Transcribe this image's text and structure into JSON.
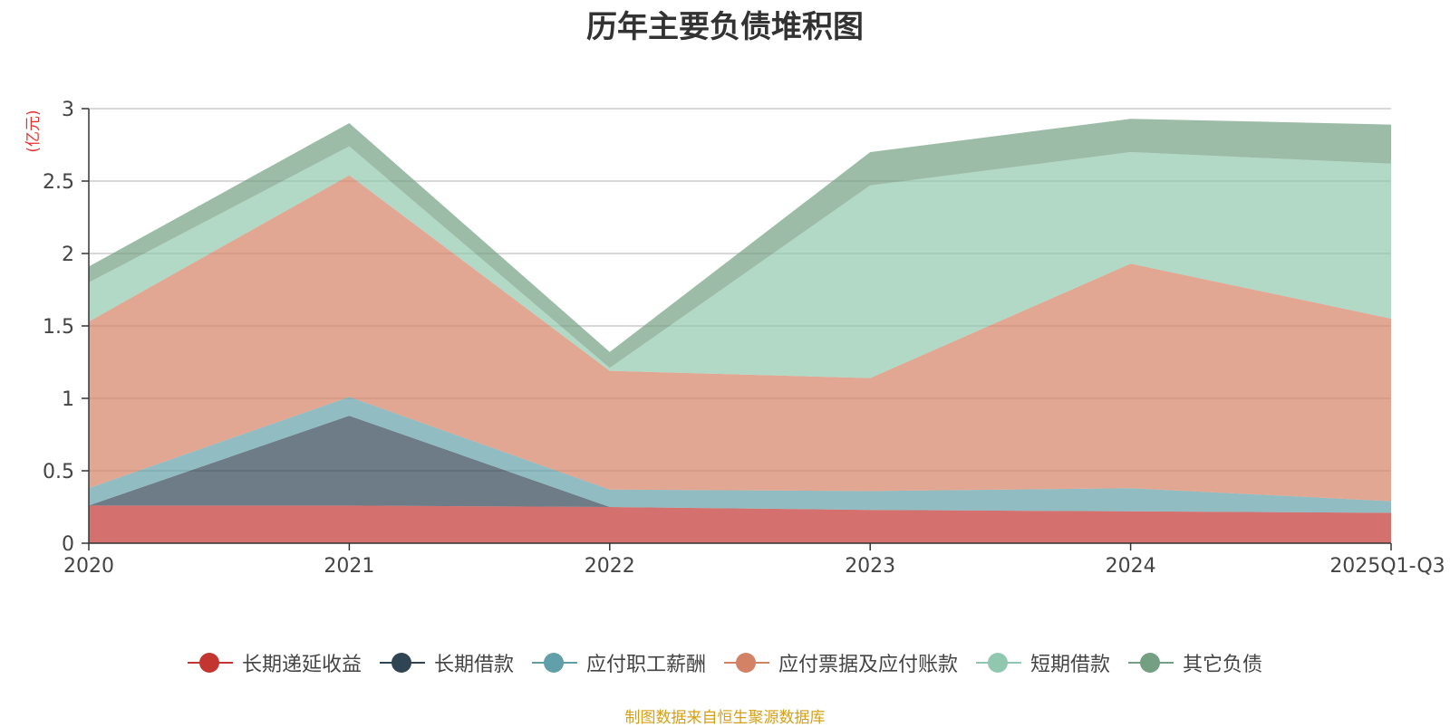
{
  "chart_data": {
    "type": "area",
    "stacked": true,
    "title": "历年主要负债堆积图",
    "ylabel": "(亿元)",
    "xlabel": "",
    "categories": [
      "2020",
      "2021",
      "2022",
      "2023",
      "2024",
      "2025Q1-Q3"
    ],
    "y_ticks": [
      "0",
      "0.5",
      "1",
      "1.5",
      "2",
      "2.5",
      "3"
    ],
    "ylim": [
      0,
      3
    ],
    "grid": true,
    "legend_position": "bottom",
    "series": [
      {
        "name": "长期递延收益",
        "color": "#c23531",
        "values": [
          0.26,
          0.26,
          0.25,
          0.23,
          0.22,
          0.21
        ]
      },
      {
        "name": "长期借款",
        "color": "#2f4554",
        "values": [
          0.0,
          0.62,
          0.0,
          0.0,
          0.0,
          0.0
        ]
      },
      {
        "name": "应付职工薪酬",
        "color": "#61a0a8",
        "values": [
          0.12,
          0.13,
          0.12,
          0.13,
          0.16,
          0.08
        ]
      },
      {
        "name": "应付票据及应付账款",
        "color": "#d48265",
        "values": [
          1.15,
          1.53,
          0.82,
          0.78,
          1.55,
          1.26
        ]
      },
      {
        "name": "短期借款",
        "color": "#91c7ae",
        "values": [
          0.27,
          0.2,
          0.02,
          1.33,
          0.77,
          1.07
        ]
      },
      {
        "name": "其它负债",
        "color": "#749f83",
        "values": [
          0.11,
          0.16,
          0.11,
          0.23,
          0.23,
          0.27
        ]
      }
    ]
  },
  "source_note": "制图数据来自恒生聚源数据库"
}
